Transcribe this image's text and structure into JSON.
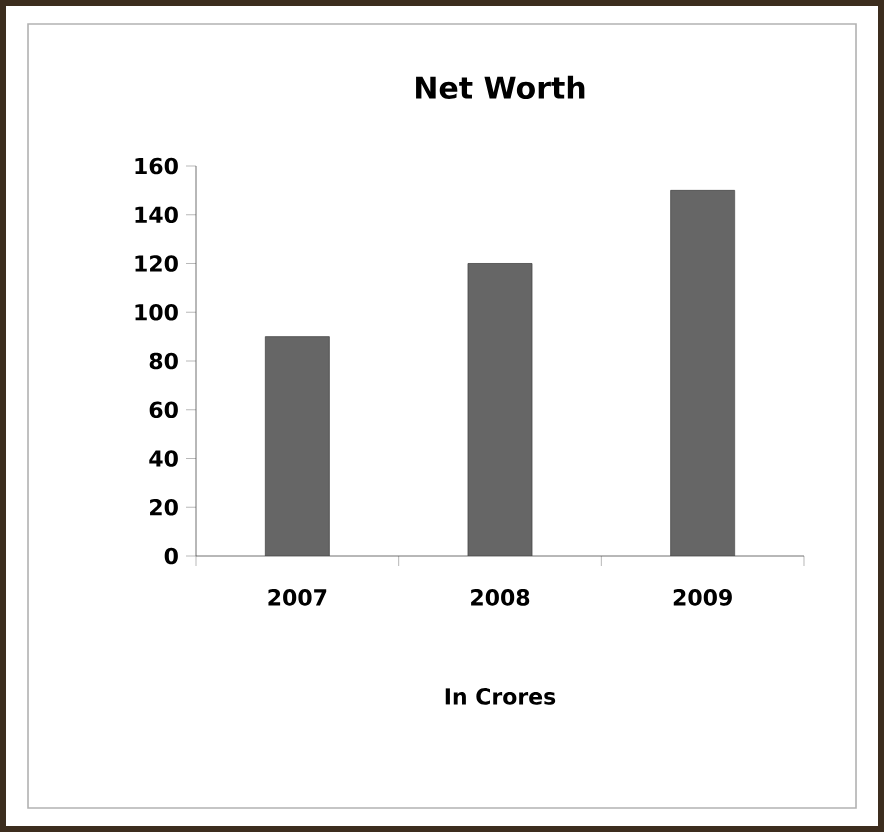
{
  "chart_data": {
    "type": "bar",
    "title": "Net Worth",
    "xlabel": "In Crores",
    "categories": [
      "2007",
      "2008",
      "2009"
    ],
    "values": [
      90,
      120,
      150
    ],
    "color": "#666666",
    "ylim": [
      0,
      160
    ],
    "yticks": [
      0,
      20,
      40,
      60,
      80,
      100,
      120,
      140,
      160
    ]
  }
}
